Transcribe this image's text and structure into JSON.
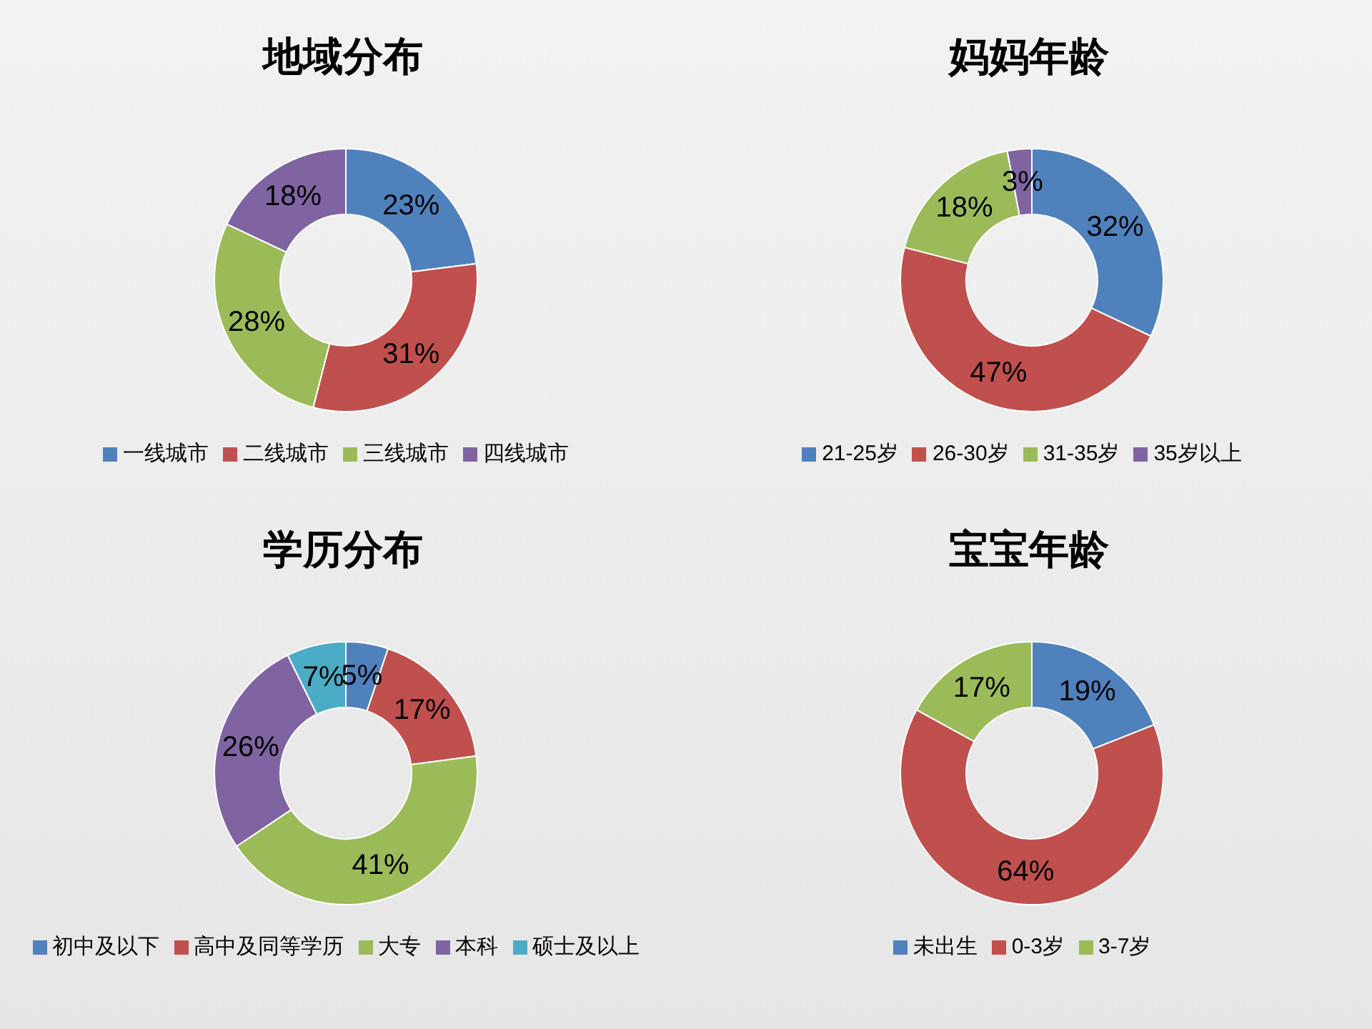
{
  "chart_data": [
    {
      "type": "donut",
      "title": "地域分布",
      "categories": [
        "一线城市",
        "二线城市",
        "三线城市",
        "四线城市"
      ],
      "values": [
        23,
        31,
        28,
        18
      ],
      "value_labels": [
        "23%",
        "31%",
        "28%",
        "18%"
      ],
      "colors": [
        "#4f81bd",
        "#c0504d",
        "#9bbb59",
        "#8064a2"
      ],
      "legend": "bottom"
    },
    {
      "type": "donut",
      "title": "妈妈年龄",
      "categories": [
        "21-25岁",
        "26-30岁",
        "31-35岁",
        "35岁以上"
      ],
      "values": [
        32,
        47,
        18,
        3
      ],
      "value_labels": [
        "32%",
        "47%",
        "18%",
        "3%"
      ],
      "colors": [
        "#4f81bd",
        "#c0504d",
        "#9bbb59",
        "#8064a2"
      ],
      "legend": "bottom"
    },
    {
      "type": "donut",
      "title": "学历分布",
      "categories": [
        "初中及以下",
        "高中及同等学历",
        "大专",
        "本科",
        "硕士及以上"
      ],
      "values": [
        5,
        17,
        41,
        26,
        7
      ],
      "value_labels": [
        "5%",
        "17%",
        "41%",
        "26%",
        "7%"
      ],
      "colors": [
        "#4f81bd",
        "#c0504d",
        "#9bbb59",
        "#8064a2",
        "#4bacc6"
      ],
      "legend": "bottom"
    },
    {
      "type": "donut",
      "title": "宝宝年龄",
      "categories": [
        "未出生",
        "0-3岁",
        "3-7岁"
      ],
      "values": [
        19,
        64,
        17
      ],
      "value_labels": [
        "19%",
        "64%",
        "17%"
      ],
      "colors": [
        "#4f81bd",
        "#c0504d",
        "#9bbb59"
      ],
      "legend": "bottom"
    }
  ]
}
